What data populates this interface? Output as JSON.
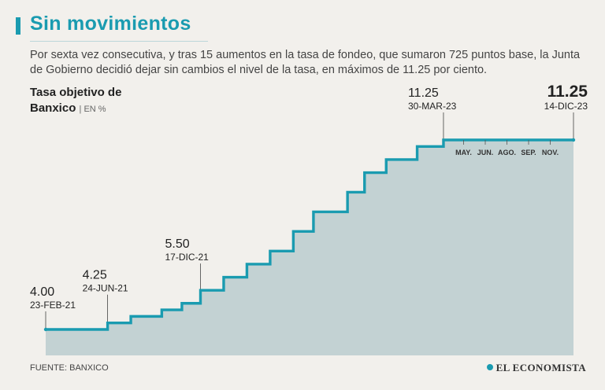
{
  "header": {
    "title": "Sin movimientos",
    "subtitle": "Por sexta vez consecutiva, y tras 15 aumentos en la tasa de fondeo, que sumaron 725 puntos base, la Junta de Gobierno decidió dejar sin cambios el nivel de la tasa, en máximos de 11.25 por ciento."
  },
  "chart_title": {
    "line1": "Tasa objetivo de",
    "line2": "Banxico",
    "unit": "| EN %"
  },
  "footer": {
    "source": "FUENTE: BANXICO",
    "brand": "EL ECONOMISTA"
  },
  "colors": {
    "accent": "#1a9bb0",
    "area": "#c3d2d3",
    "background": "#f2f0ec"
  },
  "chart_data": {
    "type": "area",
    "step": true,
    "title": "Tasa objetivo de Banxico",
    "ylabel": "EN %",
    "ylim": [
      3.5,
      11.6
    ],
    "xlim": [
      0,
      34.1
    ],
    "x_unit": "months since Feb 2021",
    "levels": [
      4.0,
      4.25,
      4.5,
      4.75,
      5.0,
      5.5,
      6.0,
      6.5,
      7.0,
      7.75,
      8.5,
      9.25,
      10.0,
      10.5,
      11.0,
      11.25
    ],
    "change_x": [
      0,
      4,
      5.5,
      7.5,
      8.8,
      10,
      11.5,
      13,
      14.5,
      16,
      17.3,
      19.5,
      20.6,
      22,
      24,
      25.7
    ],
    "end_x": 34.1,
    "annotations": [
      {
        "value": "4.00",
        "date": "23-FEB-21",
        "x": 0
      },
      {
        "value": "4.25",
        "date": "24-JUN-21",
        "x": 4
      },
      {
        "value": "5.50",
        "date": "17-DIC-21",
        "x": 10
      },
      {
        "value": "11.25",
        "date": "30-MAR-23",
        "x": 25.7
      },
      {
        "value": "11.25",
        "date": "14-DIC-23",
        "x": 34.1,
        "emphasis": true
      }
    ],
    "month_ticks": [
      {
        "label": "MAY.",
        "x": 27
      },
      {
        "label": "JUN.",
        "x": 28.4
      },
      {
        "label": "AGO.",
        "x": 29.8
      },
      {
        "label": "SEP.",
        "x": 31.2
      },
      {
        "label": "NOV.",
        "x": 32.6
      }
    ]
  }
}
